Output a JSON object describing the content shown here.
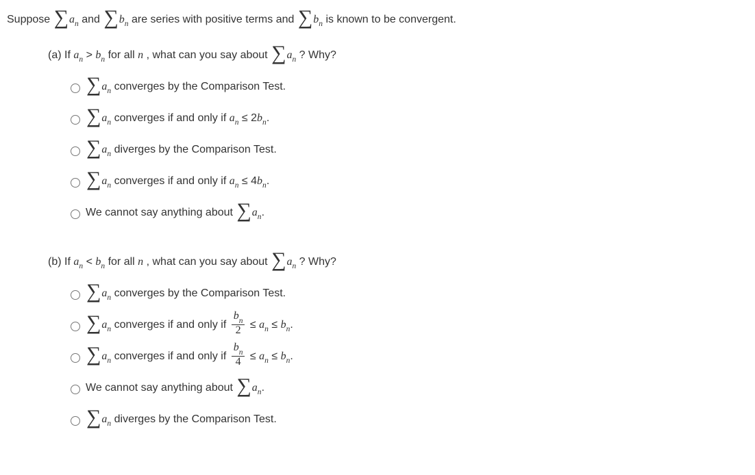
{
  "intro": {
    "t1": "Suppose ",
    "t2": " and ",
    "t3": " are series with positive terms and ",
    "t4": " is known to be convergent."
  },
  "an": "a",
  "bn": "b",
  "n": "n",
  "partA": {
    "label": "(a) If ",
    "mid": " for all ",
    "nvar": "n",
    "after": ", what can you say about ",
    "why": "?  Why?",
    "gt": " > ",
    "options": {
      "o1a": " converges by the Comparison Test.",
      "o2a": " converges if and only if ",
      "o2b": " ≤ 2",
      "o2c": ".",
      "o3a": " diverges by the Comparison Test.",
      "o4a": " converges if and only if ",
      "o4b": " ≤ 4",
      "o4c": ".",
      "o5a": "We cannot say anything about ",
      "o5b": "."
    }
  },
  "partB": {
    "label": "(b) If ",
    "mid": " for all ",
    "nvar": "n",
    "after": ", what can you say about ",
    "why": "?  Why?",
    "lt": " < ",
    "options": {
      "o1a": " converges by the Comparison Test.",
      "o2a": " converges if and only if ",
      "o2b": " ≤ ",
      "o2c": " ≤ ",
      "o2d": ".",
      "o3a": " converges if and only if ",
      "o3b": " ≤ ",
      "o3c": " ≤ ",
      "o3d": ".",
      "o4a": "We cannot say anything about ",
      "o4b": ".",
      "o5a": " diverges by the Comparison Test."
    },
    "frac2": "2",
    "frac4": "4"
  }
}
